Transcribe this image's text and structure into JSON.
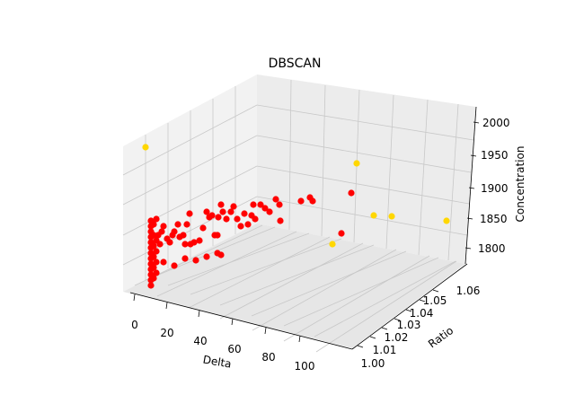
{
  "chart_data": {
    "type": "scatter",
    "title": "DBSCAN",
    "xlabel": "Delta",
    "ylabel": "Ratio",
    "zlabel": "Concentration",
    "x_ticks": [
      "0",
      "20",
      "40",
      "60",
      "80",
      "100"
    ],
    "y_ticks": [
      "1.00",
      "1.01",
      "1.02",
      "1.03",
      "1.04",
      "1.05",
      "1.06"
    ],
    "z_ticks": [
      "1800",
      "1850",
      "1900",
      "1950",
      "2000"
    ],
    "colors": {
      "cluster": "#ff0000",
      "noise": "#ffd700"
    },
    "series": [
      {
        "color": "#ff0000",
        "points": [
          [
            168,
            246
          ],
          [
            168,
            252
          ],
          [
            168,
            258
          ],
          [
            168,
            264
          ],
          [
            168,
            270
          ],
          [
            168,
            276
          ],
          [
            168,
            282
          ],
          [
            168,
            288
          ],
          [
            168,
            294
          ],
          [
            168,
            300
          ],
          [
            168,
            306
          ],
          [
            168,
            312
          ],
          [
            168,
            318
          ],
          [
            171,
            250
          ],
          [
            171,
            262
          ],
          [
            171,
            274
          ],
          [
            171,
            286
          ],
          [
            171,
            298
          ],
          [
            171,
            310
          ],
          [
            174,
            244
          ],
          [
            174,
            268
          ],
          [
            174,
            280
          ],
          [
            174,
            292
          ],
          [
            174,
            304
          ],
          [
            176,
            262
          ],
          [
            178,
            272
          ],
          [
            180,
            258
          ],
          [
            182,
            252
          ],
          [
            186,
            266
          ],
          [
            189,
            270
          ],
          [
            192,
            262
          ],
          [
            194,
            258
          ],
          [
            198,
            250
          ],
          [
            200,
            264
          ],
          [
            204,
            262
          ],
          [
            206,
            272
          ],
          [
            208,
            250
          ],
          [
            211,
            238
          ],
          [
            216,
            270
          ],
          [
            222,
            268
          ],
          [
            226,
            254
          ],
          [
            230,
            236
          ],
          [
            233,
            242
          ],
          [
            236,
            240
          ],
          [
            239,
            262
          ],
          [
            242,
            262
          ],
          [
            243,
            242
          ],
          [
            246,
            228
          ],
          [
            248,
            236
          ],
          [
            252,
            244
          ],
          [
            257,
            236
          ],
          [
            260,
            230
          ],
          [
            264,
            244
          ],
          [
            268,
            252
          ],
          [
            272,
            238
          ],
          [
            276,
            250
          ],
          [
            280,
            240
          ],
          [
            282,
            228
          ],
          [
            284,
            244
          ],
          [
            290,
            228
          ],
          [
            295,
            232
          ],
          [
            300,
            236
          ],
          [
            307,
            222
          ],
          [
            311,
            228
          ],
          [
            312,
            246
          ],
          [
            335,
            224
          ],
          [
            345,
            220
          ],
          [
            348,
            224
          ],
          [
            182,
            292
          ],
          [
            194,
            296
          ],
          [
            206,
            288
          ],
          [
            218,
            290
          ],
          [
            230,
            286
          ],
          [
            242,
            282
          ],
          [
            246,
            284
          ],
          [
            212,
            272
          ],
          [
            380,
            260
          ],
          [
            391,
            215
          ]
        ]
      },
      {
        "color": "#ffd700",
        "points": [
          [
            162,
            164
          ],
          [
            397,
            182
          ],
          [
            416,
            240
          ],
          [
            436,
            241
          ],
          [
            497,
            246
          ],
          [
            370,
            272
          ]
        ]
      }
    ]
  }
}
